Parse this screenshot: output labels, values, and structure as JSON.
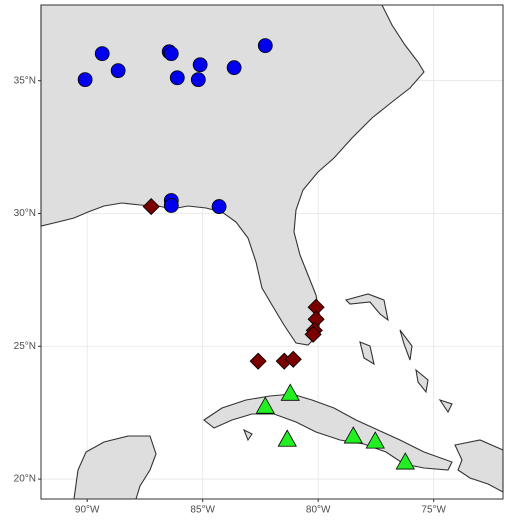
{
  "chart_data": {
    "type": "scatter",
    "xlim": [
      -92,
      -72
    ],
    "ylim": [
      19.25,
      37.85
    ],
    "xticks": [
      {
        "value": -90,
        "label": "90°W"
      },
      {
        "value": -85,
        "label": "85°W"
      },
      {
        "value": -80,
        "label": "80°W"
      },
      {
        "value": -75,
        "label": "75°W"
      }
    ],
    "yticks": [
      {
        "value": 20,
        "label": "20°N"
      },
      {
        "value": 25,
        "label": "25°N"
      },
      {
        "value": 30,
        "label": "30°N"
      },
      {
        "value": 35,
        "label": "35°N"
      }
    ],
    "grid": true,
    "series": [
      {
        "color": "#0000ee",
        "shape": "circle",
        "x": [
          -90.09,
          -89.35,
          -88.66,
          -86.45,
          -86.36,
          -86.1,
          -85.11,
          -85.19,
          -83.64,
          -82.29,
          -86.36,
          -86.36,
          -84.29
        ],
        "values": [
          35.04,
          36.02,
          35.38,
          36.09,
          36.02,
          35.11,
          35.6,
          35.04,
          35.49,
          36.32,
          30.49,
          30.3,
          30.26
        ]
      },
      {
        "color": "#7a0000",
        "shape": "diamond",
        "x": [
          -87.23,
          -80.09,
          -80.09,
          -80.17,
          -80.22,
          -82.6,
          -81.47,
          -81.08
        ],
        "values": [
          30.26,
          26.47,
          26.02,
          25.6,
          25.45,
          24.44,
          24.44,
          24.51
        ]
      },
      {
        "color": "#22ee22",
        "shape": "triangle",
        "x": [
          -82.29,
          -81.21,
          -81.34,
          -78.48,
          -77.53,
          -76.23
        ],
        "values": [
          22.74,
          23.23,
          21.5,
          21.62,
          21.43,
          20.64
        ]
      }
    ]
  }
}
